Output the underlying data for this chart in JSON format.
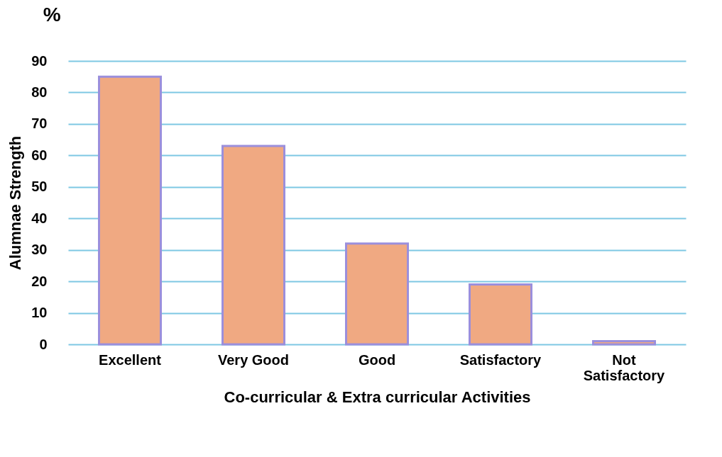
{
  "chart_data": {
    "type": "bar",
    "xlabel": "Co-curricular & Extra curricular Activities",
    "ylabel": "Alumnae Strength",
    "annotations": [
      "%"
    ],
    "categories": [
      "Excellent",
      "Very Good",
      "Good",
      "Satisfactory",
      "Not Satisfactory"
    ],
    "values": [
      85,
      63,
      32,
      19,
      1
    ],
    "color": "#f0a982",
    "ylim": [
      0,
      90
    ],
    "yticks": [
      0,
      10,
      20,
      30,
      40,
      50,
      60,
      70,
      80,
      90
    ],
    "grid": true
  }
}
